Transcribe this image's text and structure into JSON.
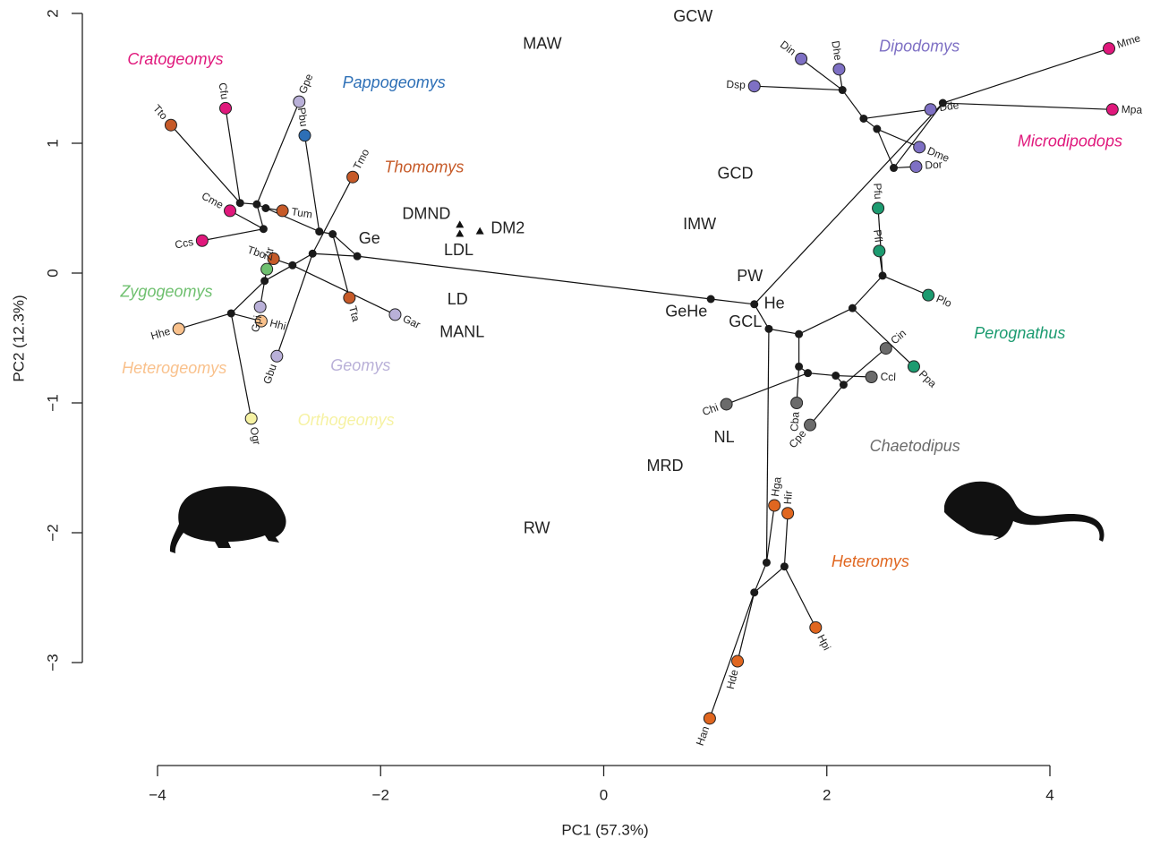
{
  "chart_data": {
    "type": "phylomorphospace",
    "xlabel": "PC1 (57.3%)",
    "ylabel": "PC2 (12.3%)",
    "xlim": [
      -4,
      4
    ],
    "ylim": [
      -3,
      2
    ],
    "xticks": [
      {
        "value": -4,
        "label": "−4"
      },
      {
        "value": -2,
        "label": "−2"
      },
      0,
      2,
      4
    ],
    "yticks": [
      {
        "value": -3,
        "label": "−3"
      },
      {
        "value": -2,
        "label": "−2"
      },
      {
        "value": -1,
        "label": "−1"
      },
      0,
      1,
      2
    ],
    "node_color": "#1a1a1a",
    "tree": {
      "x": 0.96,
      "y": -0.2,
      "children": [
        {
          "x": -2.21,
          "y": 0.13,
          "children": [
            {
              "x": -2.43,
              "y": 0.3,
              "children": [
                {
                  "label": "Tta",
                  "color": "#c65a28",
                  "x": -2.28,
                  "y": -0.19
                },
                {
                  "x": -2.55,
                  "y": 0.32,
                  "children": [
                    {
                      "label": "Pbu",
                      "color": "#2d6fb6",
                      "x": -2.68,
                      "y": 1.06
                    },
                    {
                      "x": -3.03,
                      "y": 0.5,
                      "children": [
                        {
                          "label": "Tum",
                          "color": "#c65a28",
                          "x": -2.88,
                          "y": 0.48
                        },
                        {
                          "x": -3.11,
                          "y": 0.53,
                          "children": [
                            {
                              "label": "Gpe",
                              "color": "#b9b0d8",
                              "x": -2.73,
                              "y": 1.32
                            },
                            {
                              "x": -3.26,
                              "y": 0.54,
                              "children": [
                                {
                                  "label": "Tto",
                                  "color": "#c65a28",
                                  "x": -3.88,
                                  "y": 1.14
                                },
                                {
                                  "label": "Cfu",
                                  "color": "#e0187c",
                                  "x": -3.39,
                                  "y": 1.27
                                }
                              ]
                            },
                            {
                              "x": -3.05,
                              "y": 0.34,
                              "children": [
                                {
                                  "label": "Cme",
                                  "color": "#e0187c",
                                  "x": -3.35,
                                  "y": 0.48
                                },
                                {
                                  "label": "Ccs",
                                  "color": "#e0187c",
                                  "x": -3.6,
                                  "y": 0.25
                                }
                              ]
                            }
                          ]
                        }
                      ]
                    }
                  ]
                }
              ]
            },
            {
              "x": -2.61,
              "y": 0.15,
              "children": [
                {
                  "label": "Tmo",
                  "color": "#c65a28",
                  "x": -2.25,
                  "y": 0.74
                },
                {
                  "label": "Gbu",
                  "color": "#b9b0d8",
                  "x": -2.93,
                  "y": -0.64
                },
                {
                  "x": -2.79,
                  "y": 0.06,
                  "children": [
                    {
                      "label": "Tbo",
                      "color": "#c65a28",
                      "x": -2.96,
                      "y": 0.11
                    },
                    {
                      "label": "Gar",
                      "color": "#b9b0d8",
                      "x": -1.87,
                      "y": -0.32
                    },
                    {
                      "x": -3.04,
                      "y": -0.06,
                      "children": [
                        {
                          "label": "Ztr",
                          "color": "#6fc06f",
                          "x": -3.02,
                          "y": 0.03
                        },
                        {
                          "label": "Gpi",
                          "color": "#b9b0d8",
                          "x": -3.08,
                          "y": -0.26
                        },
                        {
                          "x": -3.34,
                          "y": -0.31,
                          "children": [
                            {
                              "label": "Hhe",
                              "color": "#f9c18c",
                              "x": -3.81,
                              "y": -0.43
                            },
                            {
                              "label": "Hhi",
                              "color": "#f9c18c",
                              "x": -3.07,
                              "y": -0.37
                            },
                            {
                              "label": "Ogr",
                              "color": "#f6f2a3",
                              "x": -3.16,
                              "y": -1.12
                            }
                          ]
                        }
                      ]
                    }
                  ]
                }
              ]
            }
          ]
        },
        {
          "x": 1.35,
          "y": -0.24,
          "children": [
            {
              "x": 3.04,
              "y": 1.31,
              "children": [
                {
                  "label": "Mme",
                  "color": "#e0187c",
                  "x": 4.53,
                  "y": 1.73
                },
                {
                  "label": "Mpa",
                  "color": "#e0187c",
                  "x": 4.56,
                  "y": 1.26
                },
                {
                  "x": 2.6,
                  "y": 0.81,
                  "children": [
                    {
                      "label": "Dor",
                      "color": "#7e70c4",
                      "x": 2.8,
                      "y": 0.82
                    },
                    {
                      "x": 2.45,
                      "y": 1.11,
                      "children": [
                        {
                          "label": "Dme",
                          "color": "#7e70c4",
                          "x": 2.83,
                          "y": 0.97
                        },
                        {
                          "x": 2.33,
                          "y": 1.19,
                          "children": [
                            {
                              "label": "Dde",
                              "color": "#7e70c4",
                              "x": 2.93,
                              "y": 1.26
                            },
                            {
                              "x": 2.14,
                              "y": 1.41,
                              "children": [
                                {
                                  "label": "Dhe",
                                  "color": "#7e70c4",
                                  "x": 2.11,
                                  "y": 1.57
                                },
                                {
                                  "label": "Din",
                                  "color": "#7e70c4",
                                  "x": 1.77,
                                  "y": 1.65
                                },
                                {
                                  "label": "Dsp",
                                  "color": "#7e70c4",
                                  "x": 1.35,
                                  "y": 1.44
                                }
                              ]
                            }
                          ]
                        }
                      ]
                    }
                  ]
                }
              ]
            },
            {
              "x": 1.48,
              "y": -0.43,
              "children": [
                {
                  "x": 1.75,
                  "y": -0.47,
                  "children": [
                    {
                      "x": 2.23,
                      "y": -0.27,
                      "children": [
                        {
                          "label": "Ppa",
                          "color": "#1c9b70",
                          "x": 2.78,
                          "y": -0.72
                        },
                        {
                          "x": 2.5,
                          "y": -0.02,
                          "children": [
                            {
                              "label": "Pfl",
                              "color": "#1c9b70",
                              "x": 2.47,
                              "y": 0.17
                            },
                            {
                              "label": "Pfu",
                              "color": "#1c9b70",
                              "x": 2.46,
                              "y": 0.5
                            },
                            {
                              "label": "Plo",
                              "color": "#1c9b70",
                              "x": 2.91,
                              "y": -0.17
                            }
                          ]
                        }
                      ]
                    },
                    {
                      "x": 1.75,
                      "y": -0.72,
                      "children": [
                        {
                          "label": "Cba",
                          "color": "#6b6b6b",
                          "x": 1.73,
                          "y": -1.0
                        },
                        {
                          "x": 1.83,
                          "y": -0.77,
                          "children": [
                            {
                              "label": "Chi",
                              "color": "#6b6b6b",
                              "x": 1.1,
                              "y": -1.01
                            },
                            {
                              "x": 2.08,
                              "y": -0.79,
                              "children": [
                                {
                                  "label": "Ccl",
                                  "color": "#6b6b6b",
                                  "x": 2.4,
                                  "y": -0.8
                                },
                                {
                                  "x": 2.15,
                                  "y": -0.86,
                                  "children": [
                                    {
                                      "label": "Cin",
                                      "color": "#6b6b6b",
                                      "x": 2.53,
                                      "y": -0.58
                                    },
                                    {
                                      "label": "Cpe",
                                      "color": "#6b6b6b",
                                      "x": 1.85,
                                      "y": -1.17
                                    }
                                  ]
                                }
                              ]
                            }
                          ]
                        }
                      ]
                    }
                  ]
                },
                {
                  "x": 1.46,
                  "y": -2.23,
                  "children": [
                    {
                      "label": "Hga",
                      "color": "#e0661f",
                      "x": 1.53,
                      "y": -1.79
                    },
                    {
                      "x": 1.35,
                      "y": -2.46,
                      "children": [
                        {
                          "x": 1.62,
                          "y": -2.26,
                          "children": [
                            {
                              "label": "Hir",
                              "color": "#e0661f",
                              "x": 1.65,
                              "y": -1.85
                            },
                            {
                              "label": "Hpi",
                              "color": "#e0661f",
                              "x": 1.9,
                              "y": -2.73
                            }
                          ]
                        },
                        {
                          "label": "Hde",
                          "color": "#e0661f",
                          "x": 1.2,
                          "y": -2.99
                        },
                        {
                          "label": "Han",
                          "color": "#e0661f",
                          "x": 0.95,
                          "y": -3.43
                        }
                      ]
                    }
                  ]
                }
              ]
            }
          ]
        }
      ]
    },
    "env_points": {
      "x": [
        -1.29,
        -1.29,
        -1.11
      ],
      "y": [
        0.37,
        0.3,
        0.32
      ]
    },
    "annotations": [
      {
        "text": "MAW",
        "x": -0.55,
        "y": 1.76
      },
      {
        "text": "GCW",
        "x": 0.8,
        "y": 1.97
      },
      {
        "text": "GCD",
        "x": 1.18,
        "y": 0.76
      },
      {
        "text": "IMW",
        "x": 0.86,
        "y": 0.37
      },
      {
        "text": "DMND",
        "x": -1.59,
        "y": 0.45
      },
      {
        "text": "DM2",
        "x": -0.86,
        "y": 0.34
      },
      {
        "text": "LDL",
        "x": -1.3,
        "y": 0.17
      },
      {
        "text": "Ge",
        "x": -2.1,
        "y": 0.26
      },
      {
        "text": "PW",
        "x": 1.31,
        "y": -0.03
      },
      {
        "text": "He",
        "x": 1.53,
        "y": -0.24
      },
      {
        "text": "LD",
        "x": -1.31,
        "y": -0.21
      },
      {
        "text": "GeHe",
        "x": 0.74,
        "y": -0.3
      },
      {
        "text": "GCL",
        "x": 1.27,
        "y": -0.38
      },
      {
        "text": "MANL",
        "x": -1.27,
        "y": -0.46
      },
      {
        "text": "NL",
        "x": 1.08,
        "y": -1.27
      },
      {
        "text": "MRD",
        "x": 0.55,
        "y": -1.49
      },
      {
        "text": "RW",
        "x": -0.6,
        "y": -1.97
      }
    ],
    "clade_labels": [
      {
        "text": "Cratogeomys",
        "color": "#e0187c",
        "x": -3.84,
        "y": 1.64
      },
      {
        "text": "Pappogeomys",
        "color": "#2d6fb6",
        "x": -1.88,
        "y": 1.46
      },
      {
        "text": "Thomomys",
        "color": "#c65a28",
        "x": -1.61,
        "y": 0.81
      },
      {
        "text": "Zygogeomys",
        "color": "#6fc06f",
        "x": -3.92,
        "y": -0.15
      },
      {
        "text": "Heterogeomys",
        "color": "#f9c18c",
        "x": -3.85,
        "y": -0.74
      },
      {
        "text": "Geomys",
        "color": "#b9b0d8",
        "x": -2.18,
        "y": -0.72
      },
      {
        "text": "Orthogeomys",
        "color": "#f6f2a3",
        "x": -2.31,
        "y": -1.14
      },
      {
        "text": "Dipodomys",
        "color": "#7e70c4",
        "x": 2.83,
        "y": 1.74
      },
      {
        "text": "Microdipodops",
        "color": "#e0187c",
        "x": 4.18,
        "y": 1.01
      },
      {
        "text": "Perognathus",
        "color": "#1c9b70",
        "x": 3.73,
        "y": -0.47
      },
      {
        "text": "Chaetodipus",
        "color": "#6b6b6b",
        "x": 2.79,
        "y": -1.34
      },
      {
        "text": "Heteromys",
        "color": "#e0661f",
        "x": 2.39,
        "y": -2.23
      }
    ]
  }
}
